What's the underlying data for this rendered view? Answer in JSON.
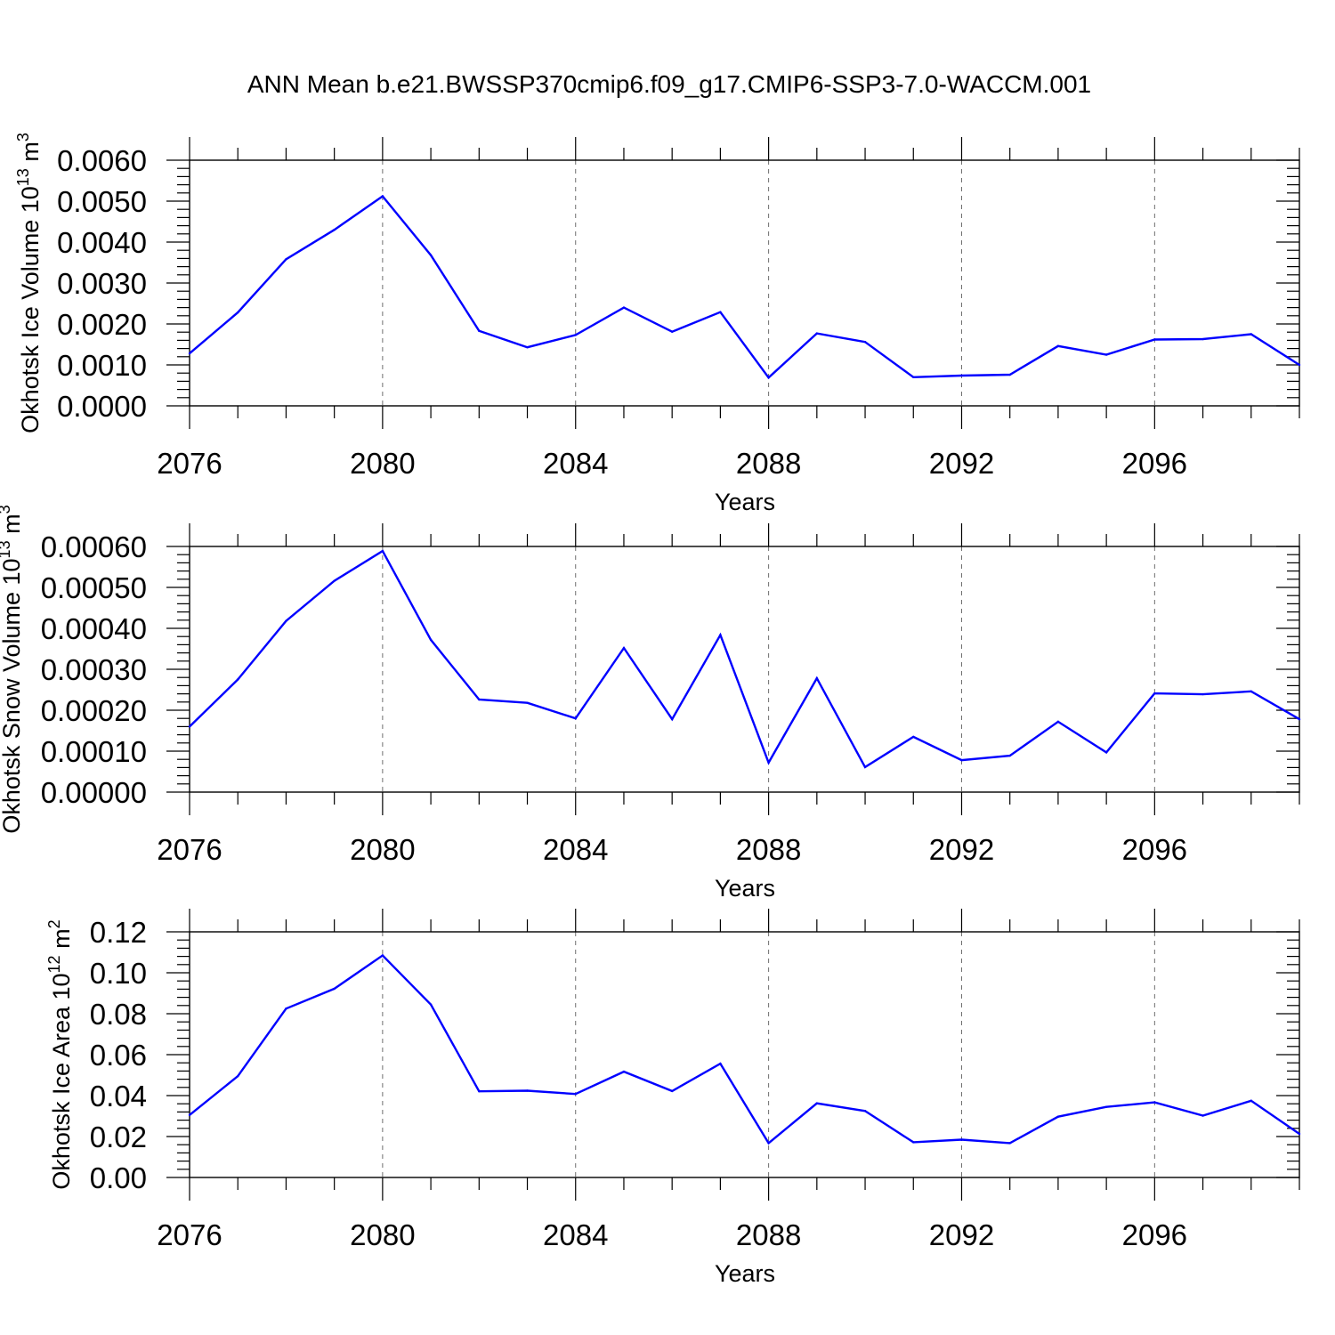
{
  "title": "ANN Mean b.e21.BWSSP370cmip6.f09_g17.CMIP6-SSP3-7.0-WACCM.001",
  "chart_data": [
    {
      "type": "line",
      "xlabel": "Years",
      "ylabel": {
        "text": "Okhotsk Ice Volume 10",
        "exp": "13",
        "unit": " m",
        "unit_exp": "3"
      },
      "xlim": [
        2076,
        2099
      ],
      "ylim": [
        0,
        0.006
      ],
      "xticks": [
        2076,
        2080,
        2084,
        2088,
        2092,
        2096
      ],
      "yticks": [
        "0.0000",
        "0.0010",
        "0.0020",
        "0.0030",
        "0.0040",
        "0.0050",
        "0.0060"
      ],
      "grid": "x-dashed",
      "color": "#0000ff",
      "x": [
        2076,
        2077,
        2078,
        2079,
        2080,
        2081,
        2082,
        2083,
        2084,
        2085,
        2086,
        2087,
        2088,
        2089,
        2090,
        2091,
        2092,
        2093,
        2094,
        2095,
        2096,
        2097,
        2098,
        2099
      ],
      "values": [
        0.00128,
        0.00228,
        0.00358,
        0.0043,
        0.00512,
        0.00368,
        0.00183,
        0.00143,
        0.00173,
        0.0024,
        0.00181,
        0.00229,
        0.00069,
        0.00177,
        0.00156,
        0.0007,
        0.00074,
        0.00076,
        0.00146,
        0.00125,
        0.00162,
        0.00163,
        0.00175,
        0.001
      ]
    },
    {
      "type": "line",
      "xlabel": "Years",
      "ylabel": {
        "text": "Okhotsk Snow Volume 10",
        "exp": "13",
        "unit": " m",
        "unit_exp": "3"
      },
      "xlim": [
        2076,
        2099
      ],
      "ylim": [
        0,
        0.0006
      ],
      "xticks": [
        2076,
        2080,
        2084,
        2088,
        2092,
        2096
      ],
      "yticks": [
        "0.00000",
        "0.00010",
        "0.00020",
        "0.00030",
        "0.00040",
        "0.00050",
        "0.00060"
      ],
      "grid": "x-dashed",
      "color": "#0000ff",
      "x": [
        2076,
        2077,
        2078,
        2079,
        2080,
        2081,
        2082,
        2083,
        2084,
        2085,
        2086,
        2087,
        2088,
        2089,
        2090,
        2091,
        2092,
        2093,
        2094,
        2095,
        2096,
        2097,
        2098,
        2099
      ],
      "values": [
        0.00016,
        0.000275,
        0.000418,
        0.000516,
        0.000589,
        0.000372,
        0.000226,
        0.000218,
        0.00018,
        0.000352,
        0.000178,
        0.000384,
        7.2e-05,
        0.000278,
        6.1e-05,
        0.000135,
        7.8e-05,
        8.9e-05,
        0.000172,
        9.7e-05,
        0.000241,
        0.000239,
        0.000246,
        0.000178
      ]
    },
    {
      "type": "line",
      "xlabel": "Years",
      "ylabel": {
        "text": "Okhotsk Ice Area 10",
        "exp": "12",
        "unit": " m",
        "unit_exp": "2"
      },
      "xlim": [
        2076,
        2099
      ],
      "ylim": [
        0,
        0.12
      ],
      "xticks": [
        2076,
        2080,
        2084,
        2088,
        2092,
        2096
      ],
      "yticks": [
        "0.00",
        "0.02",
        "0.04",
        "0.06",
        "0.08",
        "0.10",
        "0.12"
      ],
      "grid": "x-dashed",
      "color": "#0000ff",
      "x": [
        2076,
        2077,
        2078,
        2079,
        2080,
        2081,
        2082,
        2083,
        2084,
        2085,
        2086,
        2087,
        2088,
        2089,
        2090,
        2091,
        2092,
        2093,
        2094,
        2095,
        2096,
        2097,
        2098,
        2099
      ],
      "values": [
        0.0305,
        0.0495,
        0.0825,
        0.0922,
        0.1085,
        0.0845,
        0.0421,
        0.0424,
        0.0408,
        0.0517,
        0.0422,
        0.0556,
        0.0168,
        0.0362,
        0.0325,
        0.0172,
        0.0185,
        0.0168,
        0.0297,
        0.0345,
        0.0367,
        0.0302,
        0.0375,
        0.0213
      ]
    }
  ]
}
